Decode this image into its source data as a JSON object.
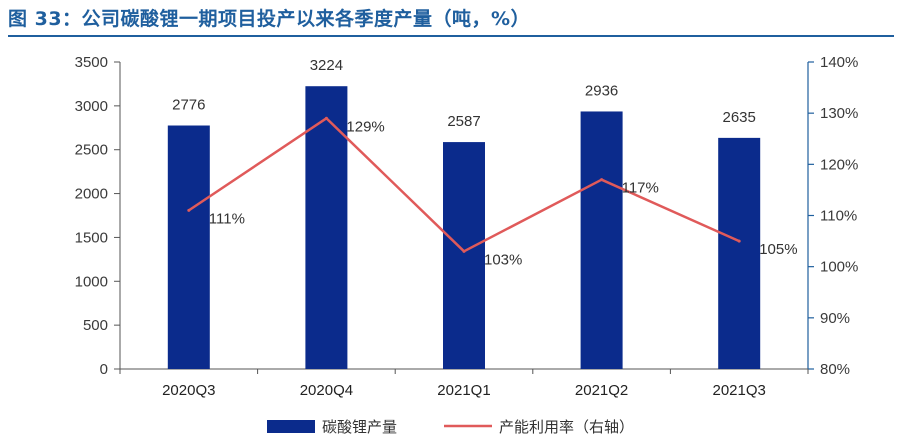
{
  "figure_title": "图 33：公司碳酸锂一期项目投产以来各季度产量（吨，%）",
  "colors": {
    "bar": "#0b2b8c",
    "line": "#e05a5a",
    "axis_right": "#1f5f9e",
    "title": "#1f5f9e"
  },
  "chart_data": {
    "type": "bar",
    "categories": [
      "2020Q3",
      "2020Q4",
      "2021Q1",
      "2021Q2",
      "2021Q3"
    ],
    "series": [
      {
        "name": "碳酸锂产量",
        "type": "bar",
        "axis": "left",
        "values": [
          2776,
          3224,
          2587,
          2936,
          2635
        ],
        "labels": [
          "2776",
          "3224",
          "2587",
          "2936",
          "2635"
        ]
      },
      {
        "name": "产能利用率（右轴）",
        "type": "line",
        "axis": "right",
        "values": [
          111,
          129,
          103,
          117,
          105
        ],
        "labels": [
          "111%",
          "129%",
          "103%",
          "117%",
          "105%"
        ]
      }
    ],
    "ylim_left": [
      0,
      3500
    ],
    "yticks_left": [
      "0",
      "500",
      "1000",
      "1500",
      "2000",
      "2500",
      "3000",
      "3500"
    ],
    "ylim_right": [
      80,
      140
    ],
    "yticks_right": [
      "80%",
      "90%",
      "100%",
      "110%",
      "120%",
      "130%",
      "140%"
    ],
    "grid": false,
    "legend_position": "bottom"
  }
}
